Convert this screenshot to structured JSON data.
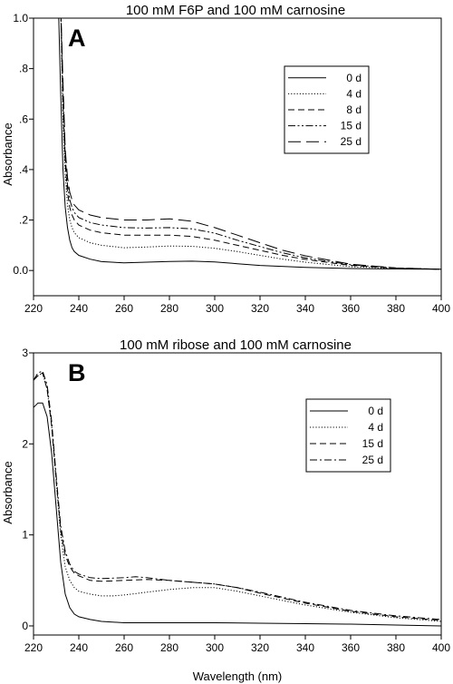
{
  "figure": {
    "xlabel": "Wavelength (nm)"
  },
  "chart_data": [
    {
      "type": "line",
      "panel_letter": "A",
      "title": "100 mM F6P and 100 mM carnosine",
      "xlabel": "",
      "ylabel": "Absorbance",
      "xlim": [
        220,
        400
      ],
      "ylim": [
        -0.1,
        1.0
      ],
      "x_ticks": [
        220,
        240,
        260,
        280,
        300,
        320,
        340,
        360,
        380,
        400
      ],
      "x_tick_labels": [
        "220",
        "240",
        "260",
        "280",
        "300",
        "320",
        "340",
        "360",
        "380",
        "400"
      ],
      "y_ticks": [
        0.0,
        0.2,
        0.4,
        0.6,
        0.8,
        1.0
      ],
      "y_tick_labels": [
        "0.0",
        ".2",
        ".4",
        ".6",
        ".8",
        "1.0"
      ],
      "grid": false,
      "legend_position": "top-right",
      "series": [
        {
          "name": "0 d",
          "dash": "solid",
          "x": [
            231,
            232,
            233,
            234,
            235,
            236,
            237,
            238,
            240,
            245,
            250,
            260,
            270,
            280,
            290,
            300,
            310,
            320,
            340,
            360,
            380,
            400
          ],
          "y": [
            1.05,
            0.7,
            0.4,
            0.25,
            0.17,
            0.12,
            0.09,
            0.075,
            0.06,
            0.045,
            0.035,
            0.03,
            0.033,
            0.036,
            0.037,
            0.034,
            0.027,
            0.02,
            0.012,
            0.008,
            0.006,
            0.005
          ]
        },
        {
          "name": "4 d",
          "dash": "dotted",
          "x": [
            232,
            233,
            234,
            235,
            236,
            237,
            238,
            240,
            245,
            250,
            260,
            270,
            280,
            290,
            300,
            310,
            320,
            330,
            340,
            360,
            380,
            400
          ],
          "y": [
            1.05,
            0.6,
            0.38,
            0.26,
            0.2,
            0.17,
            0.15,
            0.13,
            0.11,
            0.1,
            0.09,
            0.093,
            0.097,
            0.096,
            0.088,
            0.075,
            0.06,
            0.045,
            0.033,
            0.015,
            0.008,
            0.005
          ]
        },
        {
          "name": "8 d",
          "dash": "dashed",
          "x": [
            232,
            233,
            234,
            235,
            236,
            237,
            238,
            240,
            245,
            250,
            260,
            270,
            280,
            290,
            300,
            310,
            320,
            330,
            340,
            360,
            380,
            400
          ],
          "y": [
            1.05,
            0.65,
            0.42,
            0.31,
            0.25,
            0.22,
            0.2,
            0.18,
            0.16,
            0.15,
            0.14,
            0.14,
            0.14,
            0.135,
            0.12,
            0.1,
            0.08,
            0.06,
            0.044,
            0.02,
            0.009,
            0.005
          ]
        },
        {
          "name": "15 d",
          "dash": "dash-dot-dot",
          "x": [
            232,
            233,
            234,
            235,
            236,
            237,
            238,
            240,
            245,
            250,
            260,
            270,
            280,
            290,
            300,
            310,
            320,
            330,
            340,
            360,
            380,
            400
          ],
          "y": [
            1.05,
            0.7,
            0.45,
            0.34,
            0.28,
            0.25,
            0.23,
            0.21,
            0.19,
            0.18,
            0.17,
            0.168,
            0.17,
            0.165,
            0.148,
            0.12,
            0.095,
            0.07,
            0.05,
            0.023,
            0.01,
            0.005
          ]
        },
        {
          "name": "25 d",
          "dash": "long-dash",
          "x": [
            232,
            233,
            234,
            235,
            236,
            237,
            238,
            240,
            245,
            250,
            260,
            270,
            280,
            290,
            300,
            310,
            320,
            330,
            340,
            360,
            380,
            400
          ],
          "y": [
            1.05,
            0.75,
            0.48,
            0.37,
            0.31,
            0.28,
            0.26,
            0.24,
            0.22,
            0.21,
            0.2,
            0.2,
            0.205,
            0.195,
            0.17,
            0.14,
            0.11,
            0.08,
            0.058,
            0.025,
            0.01,
            0.005
          ]
        }
      ]
    },
    {
      "type": "line",
      "panel_letter": "B",
      "title": "100 mM ribose and 100 mM carnosine",
      "xlabel": "Wavelength (nm)",
      "ylabel": "Absorbance",
      "xlim": [
        220,
        400
      ],
      "ylim": [
        -0.1,
        3.0
      ],
      "x_ticks": [
        220,
        240,
        260,
        280,
        300,
        320,
        340,
        360,
        380,
        400
      ],
      "x_tick_labels": [
        "220",
        "240",
        "260",
        "280",
        "300",
        "320",
        "340",
        "360",
        "380",
        "400"
      ],
      "y_ticks": [
        0,
        1,
        2,
        3
      ],
      "y_tick_labels": [
        "0",
        "1",
        "2",
        "3"
      ],
      "grid": false,
      "legend_position": "top-right",
      "series": [
        {
          "name": "0 d",
          "dash": "solid",
          "x": [
            220,
            222,
            224,
            226,
            228,
            230,
            232,
            234,
            236,
            238,
            240,
            245,
            250,
            260,
            280,
            300,
            320,
            340,
            360,
            380,
            400
          ],
          "y": [
            2.4,
            2.45,
            2.45,
            2.3,
            1.9,
            1.3,
            0.7,
            0.35,
            0.2,
            0.13,
            0.1,
            0.07,
            0.05,
            0.035,
            0.035,
            0.035,
            0.03,
            0.025,
            0.02,
            0.01,
            0.0
          ]
        },
        {
          "name": "4 d",
          "dash": "dotted",
          "x": [
            220,
            222,
            224,
            226,
            228,
            230,
            232,
            234,
            236,
            238,
            240,
            245,
            250,
            255,
            260,
            270,
            280,
            290,
            300,
            310,
            320,
            340,
            360,
            380,
            400
          ],
          "y": [
            2.7,
            2.75,
            2.78,
            2.6,
            2.2,
            1.6,
            1.0,
            0.65,
            0.5,
            0.42,
            0.38,
            0.35,
            0.33,
            0.33,
            0.34,
            0.37,
            0.4,
            0.42,
            0.42,
            0.38,
            0.33,
            0.23,
            0.15,
            0.09,
            0.05
          ]
        },
        {
          "name": "15 d",
          "dash": "dashed",
          "x": [
            220,
            222,
            224,
            226,
            228,
            230,
            232,
            234,
            236,
            238,
            240,
            245,
            250,
            260,
            270,
            280,
            290,
            300,
            310,
            320,
            340,
            360,
            380,
            400
          ],
          "y": [
            2.7,
            2.75,
            2.78,
            2.6,
            2.2,
            1.6,
            1.05,
            0.78,
            0.65,
            0.58,
            0.55,
            0.5,
            0.49,
            0.5,
            0.51,
            0.5,
            0.48,
            0.46,
            0.42,
            0.36,
            0.25,
            0.16,
            0.1,
            0.06
          ]
        },
        {
          "name": "25 d",
          "dash": "dash-dot",
          "x": [
            220,
            222,
            224,
            226,
            228,
            230,
            232,
            234,
            236,
            238,
            240,
            245,
            250,
            260,
            265,
            270,
            280,
            290,
            300,
            310,
            320,
            340,
            360,
            380,
            400
          ],
          "y": [
            2.7,
            2.78,
            2.8,
            2.65,
            2.25,
            1.65,
            1.1,
            0.82,
            0.68,
            0.6,
            0.57,
            0.53,
            0.52,
            0.53,
            0.54,
            0.53,
            0.5,
            0.48,
            0.46,
            0.42,
            0.37,
            0.26,
            0.17,
            0.11,
            0.07
          ]
        }
      ]
    }
  ]
}
